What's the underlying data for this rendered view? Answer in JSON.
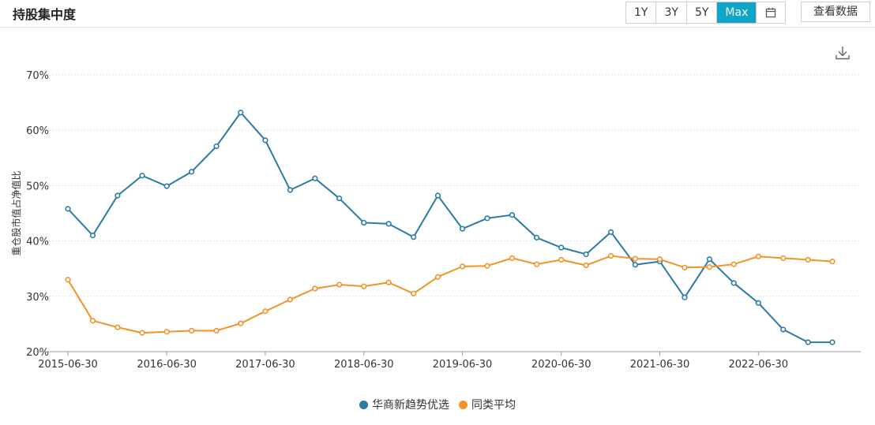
{
  "header": {
    "title": "持股集中度",
    "ranges": [
      "1Y",
      "3Y",
      "5Y",
      "Max"
    ],
    "active_range": "Max",
    "view_data_label": "查看数据"
  },
  "icons": {
    "calendar": "calendar-icon",
    "download": "download-icon"
  },
  "colors": {
    "series1": "#2b7ba5",
    "series2": "#f39226",
    "active_button": "#0ea5c9"
  },
  "chart_data": {
    "type": "line",
    "title": "",
    "xlabel": "",
    "ylabel": "重仓股市值占净值比",
    "ylim": [
      20,
      70
    ],
    "yticks": [
      "20%",
      "30%",
      "40%",
      "50%",
      "60%",
      "70%"
    ],
    "xticks": [
      "2015-06-30",
      "2016-06-30",
      "2017-06-30",
      "2018-06-30",
      "2019-06-30",
      "2020-06-30",
      "2021-06-30",
      "2022-06-30"
    ],
    "x": [
      "2015-06-30",
      "2015-09-30",
      "2015-12-31",
      "2016-03-31",
      "2016-06-30",
      "2016-09-30",
      "2016-12-31",
      "2017-03-31",
      "2017-06-30",
      "2017-09-30",
      "2017-12-31",
      "2018-03-31",
      "2018-06-30",
      "2018-09-30",
      "2018-12-31",
      "2019-03-31",
      "2019-06-30",
      "2019-09-30",
      "2019-12-31",
      "2020-03-31",
      "2020-06-30",
      "2020-09-30",
      "2020-12-31",
      "2021-03-31",
      "2021-06-30",
      "2021-09-30",
      "2021-12-31",
      "2022-03-31",
      "2022-06-30",
      "2022-09-30",
      "2022-12-31",
      "2023-03-31"
    ],
    "series": [
      {
        "name": "华商新趋势优选",
        "values": [
          45.8,
          41.0,
          48.2,
          51.8,
          49.9,
          52.5,
          57.1,
          63.2,
          58.2,
          49.2,
          51.3,
          47.7,
          43.3,
          43.1,
          40.7,
          48.2,
          42.2,
          44.1,
          44.7,
          40.6,
          38.8,
          37.6,
          41.6,
          35.7,
          36.3,
          29.8,
          36.7,
          32.4,
          28.8,
          24.0,
          21.7,
          21.7
        ]
      },
      {
        "name": "同类平均",
        "values": [
          33.0,
          25.6,
          24.4,
          23.4,
          23.6,
          23.8,
          23.8,
          25.1,
          27.3,
          29.4,
          31.4,
          32.1,
          31.8,
          32.5,
          30.5,
          33.5,
          35.4,
          35.5,
          36.9,
          35.8,
          36.6,
          35.6,
          37.3,
          36.8,
          36.7,
          35.2,
          35.3,
          35.8,
          37.2,
          36.9,
          36.6,
          36.3
        ]
      }
    ],
    "grid": true,
    "legend": "bottom-center"
  }
}
